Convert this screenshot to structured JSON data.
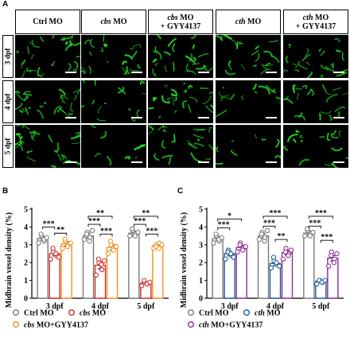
{
  "panel_a": {
    "letter": "A",
    "columns": [
      {
        "parts": [
          {
            "t": "Ctrl MO",
            "i": false
          }
        ]
      },
      {
        "parts": [
          {
            "t": "cbs",
            "i": true
          },
          {
            "t": " MO",
            "i": false
          }
        ]
      },
      {
        "parts": [
          {
            "t": "cbs",
            "i": true
          },
          {
            "t": " MO",
            "i": false
          },
          {
            "br": true
          },
          {
            "t": "+ GYY4137",
            "i": false
          }
        ]
      },
      {
        "parts": [
          {
            "t": "cth",
            "i": true
          },
          {
            "t": " MO",
            "i": false
          }
        ]
      },
      {
        "parts": [
          {
            "t": "cth",
            "i": true
          },
          {
            "t": " MO",
            "i": false
          },
          {
            "br": true
          },
          {
            "t": "+ GYY4137",
            "i": false
          }
        ]
      }
    ],
    "rows": [
      "3 dpf",
      "4 dpf",
      "5 dpf"
    ],
    "vessel_color": "#22dd22"
  },
  "panel_b": {
    "letter": "B"
  },
  "panel_c": {
    "letter": "C"
  },
  "chart_data": [
    {
      "type": "bar",
      "ylabel": "Midbrain vessel density (%)",
      "ylim": [
        0,
        5
      ],
      "yticks": [
        0,
        1,
        2,
        3,
        4,
        5
      ],
      "categories": [
        "3 dpf",
        "4 dpf",
        "5 dpf"
      ],
      "series": [
        {
          "name": "Ctrl MO",
          "name_italic": false,
          "color": "#7a7a7a",
          "values": [
            3.35,
            3.5,
            3.65
          ],
          "sem": [
            0.1,
            0.12,
            0.1
          ],
          "points": [
            [
              3.1,
              3.5,
              3.2,
              3.6,
              3.3,
              3.4
            ],
            [
              3.3,
              3.7,
              3.4,
              3.6,
              3.2,
              3.8
            ],
            [
              3.5,
              3.8,
              3.6,
              3.9,
              3.5,
              3.7
            ]
          ]
        },
        {
          "name": "cbs MO",
          "name_italic": true,
          "color": "#d42a2a",
          "values": [
            2.5,
            1.85,
            0.85
          ],
          "sem": [
            0.12,
            0.2,
            0.06
          ],
          "points": [
            [
              2.2,
              2.6,
              2.4,
              2.8,
              2.5,
              2.3
            ],
            [
              1.3,
              2.0,
              1.6,
              2.2,
              1.9,
              2.1
            ],
            [
              0.7,
              0.9,
              0.8,
              1.0,
              0.8,
              0.9
            ]
          ]
        },
        {
          "name": "cbs MO+GYY4137",
          "name_italic": false,
          "italic_prefix": "cbs",
          "color": "#f2921f",
          "values": [
            3.05,
            2.85,
            2.95
          ],
          "sem": [
            0.12,
            0.15,
            0.1
          ],
          "points": [
            [
              2.8,
              3.2,
              3.0,
              3.3,
              2.9,
              3.1
            ],
            [
              2.5,
              3.0,
              2.8,
              3.2,
              2.7,
              2.9
            ],
            [
              2.8,
              3.0,
              3.1,
              2.9,
              2.8,
              3.0
            ]
          ]
        }
      ],
      "significance": [
        {
          "g": 0,
          "from": 0,
          "to": 1,
          "y": 4.0,
          "label": "***"
        },
        {
          "g": 0,
          "from": 1,
          "to": 2,
          "y": 3.65,
          "label": "**"
        },
        {
          "g": 1,
          "from": 0,
          "to": 1,
          "y": 4.15,
          "label": "***"
        },
        {
          "g": 1,
          "from": 0,
          "to": 2,
          "y": 4.6,
          "label": "**"
        },
        {
          "g": 1,
          "from": 1,
          "to": 2,
          "y": 3.6,
          "label": "***"
        },
        {
          "g": 2,
          "from": 0,
          "to": 1,
          "y": 4.15,
          "label": "***"
        },
        {
          "g": 2,
          "from": 0,
          "to": 2,
          "y": 4.6,
          "label": "**"
        },
        {
          "g": 2,
          "from": 1,
          "to": 2,
          "y": 3.6,
          "label": "***"
        }
      ]
    },
    {
      "type": "bar",
      "ylabel": "Midbrain vessel density (%)",
      "ylim": [
        0,
        5
      ],
      "yticks": [
        0,
        1,
        2,
        3,
        4,
        5
      ],
      "categories": [
        "3 dpf",
        "4 dpf",
        "5 dpf"
      ],
      "series": [
        {
          "name": "Ctrl MO",
          "name_italic": false,
          "color": "#7a7a7a",
          "values": [
            3.35,
            3.5,
            3.65
          ],
          "sem": [
            0.1,
            0.12,
            0.1
          ],
          "points": [
            [
              3.1,
              3.5,
              3.2,
              3.6,
              3.3,
              3.4
            ],
            [
              3.3,
              3.7,
              3.4,
              3.6,
              3.2,
              3.8
            ],
            [
              3.5,
              3.8,
              3.6,
              3.9,
              3.5,
              3.7
            ]
          ]
        },
        {
          "name": "cth MO",
          "name_italic": true,
          "color": "#1f5a9a",
          "values": [
            2.5,
            1.95,
            0.95
          ],
          "sem": [
            0.12,
            0.12,
            0.05
          ],
          "points": [
            [
              2.2,
              2.7,
              2.4,
              2.6,
              2.5,
              2.3
            ],
            [
              1.7,
              2.1,
              1.9,
              2.3,
              2.0,
              1.8
            ],
            [
              0.8,
              1.0,
              0.9,
              1.0,
              0.9,
              1.0
            ]
          ]
        },
        {
          "name": "cth MO+GYY4137",
          "name_italic": false,
          "italic_prefix": "cth",
          "color": "#8e2c9a",
          "values": [
            2.85,
            2.55,
            2.25
          ],
          "sem": [
            0.12,
            0.12,
            0.15
          ],
          "points": [
            [
              2.6,
              3.1,
              2.8,
              3.0,
              2.7,
              2.9
            ],
            [
              2.2,
              2.8,
              2.5,
              2.6,
              2.4,
              2.7
            ],
            [
              1.8,
              2.6,
              2.2,
              2.4,
              2.0,
              2.5
            ]
          ]
        }
      ],
      "significance": [
        {
          "g": 0,
          "from": 0,
          "to": 1,
          "y": 3.95,
          "label": "***"
        },
        {
          "g": 0,
          "from": 0,
          "to": 2,
          "y": 4.45,
          "label": "*"
        },
        {
          "g": 1,
          "from": 0,
          "to": 1,
          "y": 4.05,
          "label": "***"
        },
        {
          "g": 1,
          "from": 0,
          "to": 2,
          "y": 4.6,
          "label": "***"
        },
        {
          "g": 1,
          "from": 1,
          "to": 2,
          "y": 3.3,
          "label": "**"
        },
        {
          "g": 2,
          "from": 0,
          "to": 1,
          "y": 4.05,
          "label": "***"
        },
        {
          "g": 2,
          "from": 0,
          "to": 2,
          "y": 4.6,
          "label": "***"
        },
        {
          "g": 2,
          "from": 1,
          "to": 2,
          "y": 3.25,
          "label": "***"
        }
      ]
    }
  ]
}
